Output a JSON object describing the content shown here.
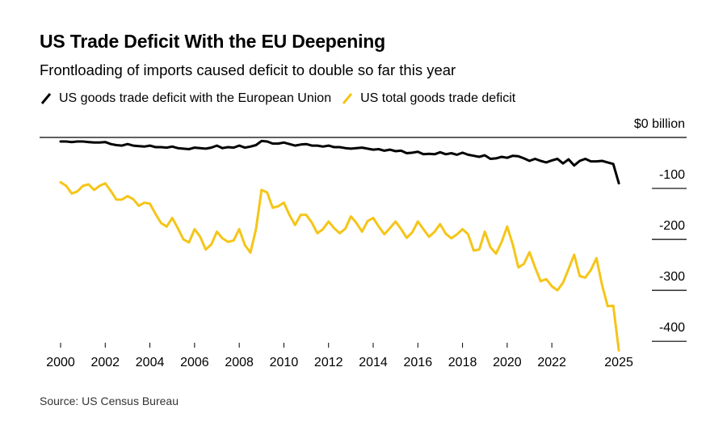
{
  "header": {
    "title": "US Trade Deficit With the EU Deepening",
    "subtitle": "Frontloading of imports caused deficit to double so far this year"
  },
  "footer": {
    "source": "Source: US Census Bureau"
  },
  "chart_data": {
    "type": "line",
    "title": "US Trade Deficit With the EU Deepening",
    "subtitle": "Frontloading of imports caused deficit to double so far this year",
    "x_ticks": [
      "2000",
      "2002",
      "2004",
      "2006",
      "2008",
      "2010",
      "2012",
      "2014",
      "2016",
      "2018",
      "2020",
      "2022",
      "2025"
    ],
    "y_ticks": [
      {
        "value": 0,
        "label": "$0 billion"
      },
      {
        "value": -100,
        "label": "-100"
      },
      {
        "value": -200,
        "label": "-200"
      },
      {
        "value": -300,
        "label": "-300"
      },
      {
        "value": -400,
        "label": "-400"
      }
    ],
    "xlim": [
      2000,
      2025.25
    ],
    "ylim": [
      -420,
      0
    ],
    "legend_position": "top-left",
    "series": [
      {
        "name": "US goods trade deficit with the European Union",
        "color": "#000000",
        "x": [
          2000.0,
          2000.25,
          2000.5,
          2000.75,
          2001.0,
          2001.25,
          2001.5,
          2001.75,
          2002.0,
          2002.25,
          2002.5,
          2002.75,
          2003.0,
          2003.25,
          2003.5,
          2003.75,
          2004.0,
          2004.25,
          2004.5,
          2004.75,
          2005.0,
          2005.25,
          2005.5,
          2005.75,
          2006.0,
          2006.25,
          2006.5,
          2006.75,
          2007.0,
          2007.25,
          2007.5,
          2007.75,
          2008.0,
          2008.25,
          2008.5,
          2008.75,
          2009.0,
          2009.25,
          2009.5,
          2009.75,
          2010.0,
          2010.25,
          2010.5,
          2010.75,
          2011.0,
          2011.25,
          2011.5,
          2011.75,
          2012.0,
          2012.25,
          2012.5,
          2012.75,
          2013.0,
          2013.25,
          2013.5,
          2013.75,
          2014.0,
          2014.25,
          2014.5,
          2014.75,
          2015.0,
          2015.25,
          2015.5,
          2015.75,
          2016.0,
          2016.25,
          2016.5,
          2016.75,
          2017.0,
          2017.25,
          2017.5,
          2017.75,
          2018.0,
          2018.25,
          2018.5,
          2018.75,
          2019.0,
          2019.25,
          2019.5,
          2019.75,
          2020.0,
          2020.25,
          2020.5,
          2020.75,
          2021.0,
          2021.25,
          2021.5,
          2021.75,
          2022.0,
          2022.25,
          2022.5,
          2022.75,
          2023.0,
          2023.25,
          2023.5,
          2023.75,
          2024.0,
          2024.25,
          2024.5,
          2024.75,
          2025.0
        ],
        "values": [
          -8,
          -8,
          -9,
          -8,
          -8,
          -9,
          -10,
          -10,
          -9,
          -13,
          -15,
          -16,
          -13,
          -16,
          -17,
          -18,
          -16,
          -19,
          -19,
          -20,
          -18,
          -21,
          -22,
          -23,
          -20,
          -21,
          -22,
          -20,
          -16,
          -21,
          -19,
          -20,
          -16,
          -20,
          -18,
          -15,
          -7,
          -8,
          -12,
          -12,
          -10,
          -13,
          -16,
          -14,
          -13,
          -16,
          -16,
          -18,
          -16,
          -19,
          -19,
          -21,
          -22,
          -21,
          -20,
          -22,
          -24,
          -23,
          -26,
          -24,
          -27,
          -26,
          -31,
          -30,
          -28,
          -33,
          -32,
          -33,
          -29,
          -33,
          -31,
          -34,
          -30,
          -34,
          -36,
          -38,
          -35,
          -42,
          -41,
          -38,
          -40,
          -36,
          -37,
          -41,
          -46,
          -42,
          -46,
          -49,
          -45,
          -42,
          -51,
          -43,
          -55,
          -46,
          -42,
          -47,
          -47,
          -46,
          -49,
          -52,
          -90
        ]
      },
      {
        "name": "US total goods trade deficit",
        "color": "#f5c518",
        "x": [
          2000.0,
          2000.25,
          2000.5,
          2000.75,
          2001.0,
          2001.25,
          2001.5,
          2001.75,
          2002.0,
          2002.25,
          2002.5,
          2002.75,
          2003.0,
          2003.25,
          2003.5,
          2003.75,
          2004.0,
          2004.25,
          2004.5,
          2004.75,
          2005.0,
          2005.25,
          2005.5,
          2005.75,
          2006.0,
          2006.25,
          2006.5,
          2006.75,
          2007.0,
          2007.25,
          2007.5,
          2007.75,
          2008.0,
          2008.25,
          2008.5,
          2008.75,
          2009.0,
          2009.25,
          2009.5,
          2009.75,
          2010.0,
          2010.25,
          2010.5,
          2010.75,
          2011.0,
          2011.25,
          2011.5,
          2011.75,
          2012.0,
          2012.25,
          2012.5,
          2012.75,
          2013.0,
          2013.25,
          2013.5,
          2013.75,
          2014.0,
          2014.25,
          2014.5,
          2014.75,
          2015.0,
          2015.25,
          2015.5,
          2015.75,
          2016.0,
          2016.25,
          2016.5,
          2016.75,
          2017.0,
          2017.25,
          2017.5,
          2017.75,
          2018.0,
          2018.25,
          2018.5,
          2018.75,
          2019.0,
          2019.25,
          2019.5,
          2019.75,
          2020.0,
          2020.25,
          2020.5,
          2020.75,
          2021.0,
          2021.25,
          2021.5,
          2021.75,
          2022.0,
          2022.25,
          2022.5,
          2022.75,
          2023.0,
          2023.25,
          2023.5,
          2023.75,
          2024.0,
          2024.25,
          2024.5,
          2024.75,
          2025.0
        ],
        "values": [
          -88,
          -95,
          -110,
          -106,
          -95,
          -92,
          -103,
          -95,
          -90,
          -105,
          -122,
          -122,
          -115,
          -121,
          -134,
          -128,
          -130,
          -150,
          -168,
          -175,
          -158,
          -178,
          -200,
          -206,
          -180,
          -195,
          -220,
          -210,
          -185,
          -198,
          -205,
          -202,
          -180,
          -211,
          -226,
          -180,
          -103,
          -108,
          -138,
          -135,
          -128,
          -152,
          -172,
          -152,
          -152,
          -167,
          -188,
          -180,
          -165,
          -178,
          -188,
          -179,
          -155,
          -168,
          -185,
          -164,
          -158,
          -175,
          -190,
          -178,
          -165,
          -180,
          -197,
          -186,
          -165,
          -180,
          -195,
          -185,
          -170,
          -189,
          -198,
          -190,
          -180,
          -190,
          -222,
          -220,
          -185,
          -215,
          -228,
          -205,
          -175,
          -210,
          -255,
          -248,
          -225,
          -255,
          -282,
          -278,
          -292,
          -300,
          -285,
          -258,
          -230,
          -272,
          -275,
          -260,
          -237,
          -290,
          -331,
          -330,
          -418
        ]
      }
    ]
  }
}
